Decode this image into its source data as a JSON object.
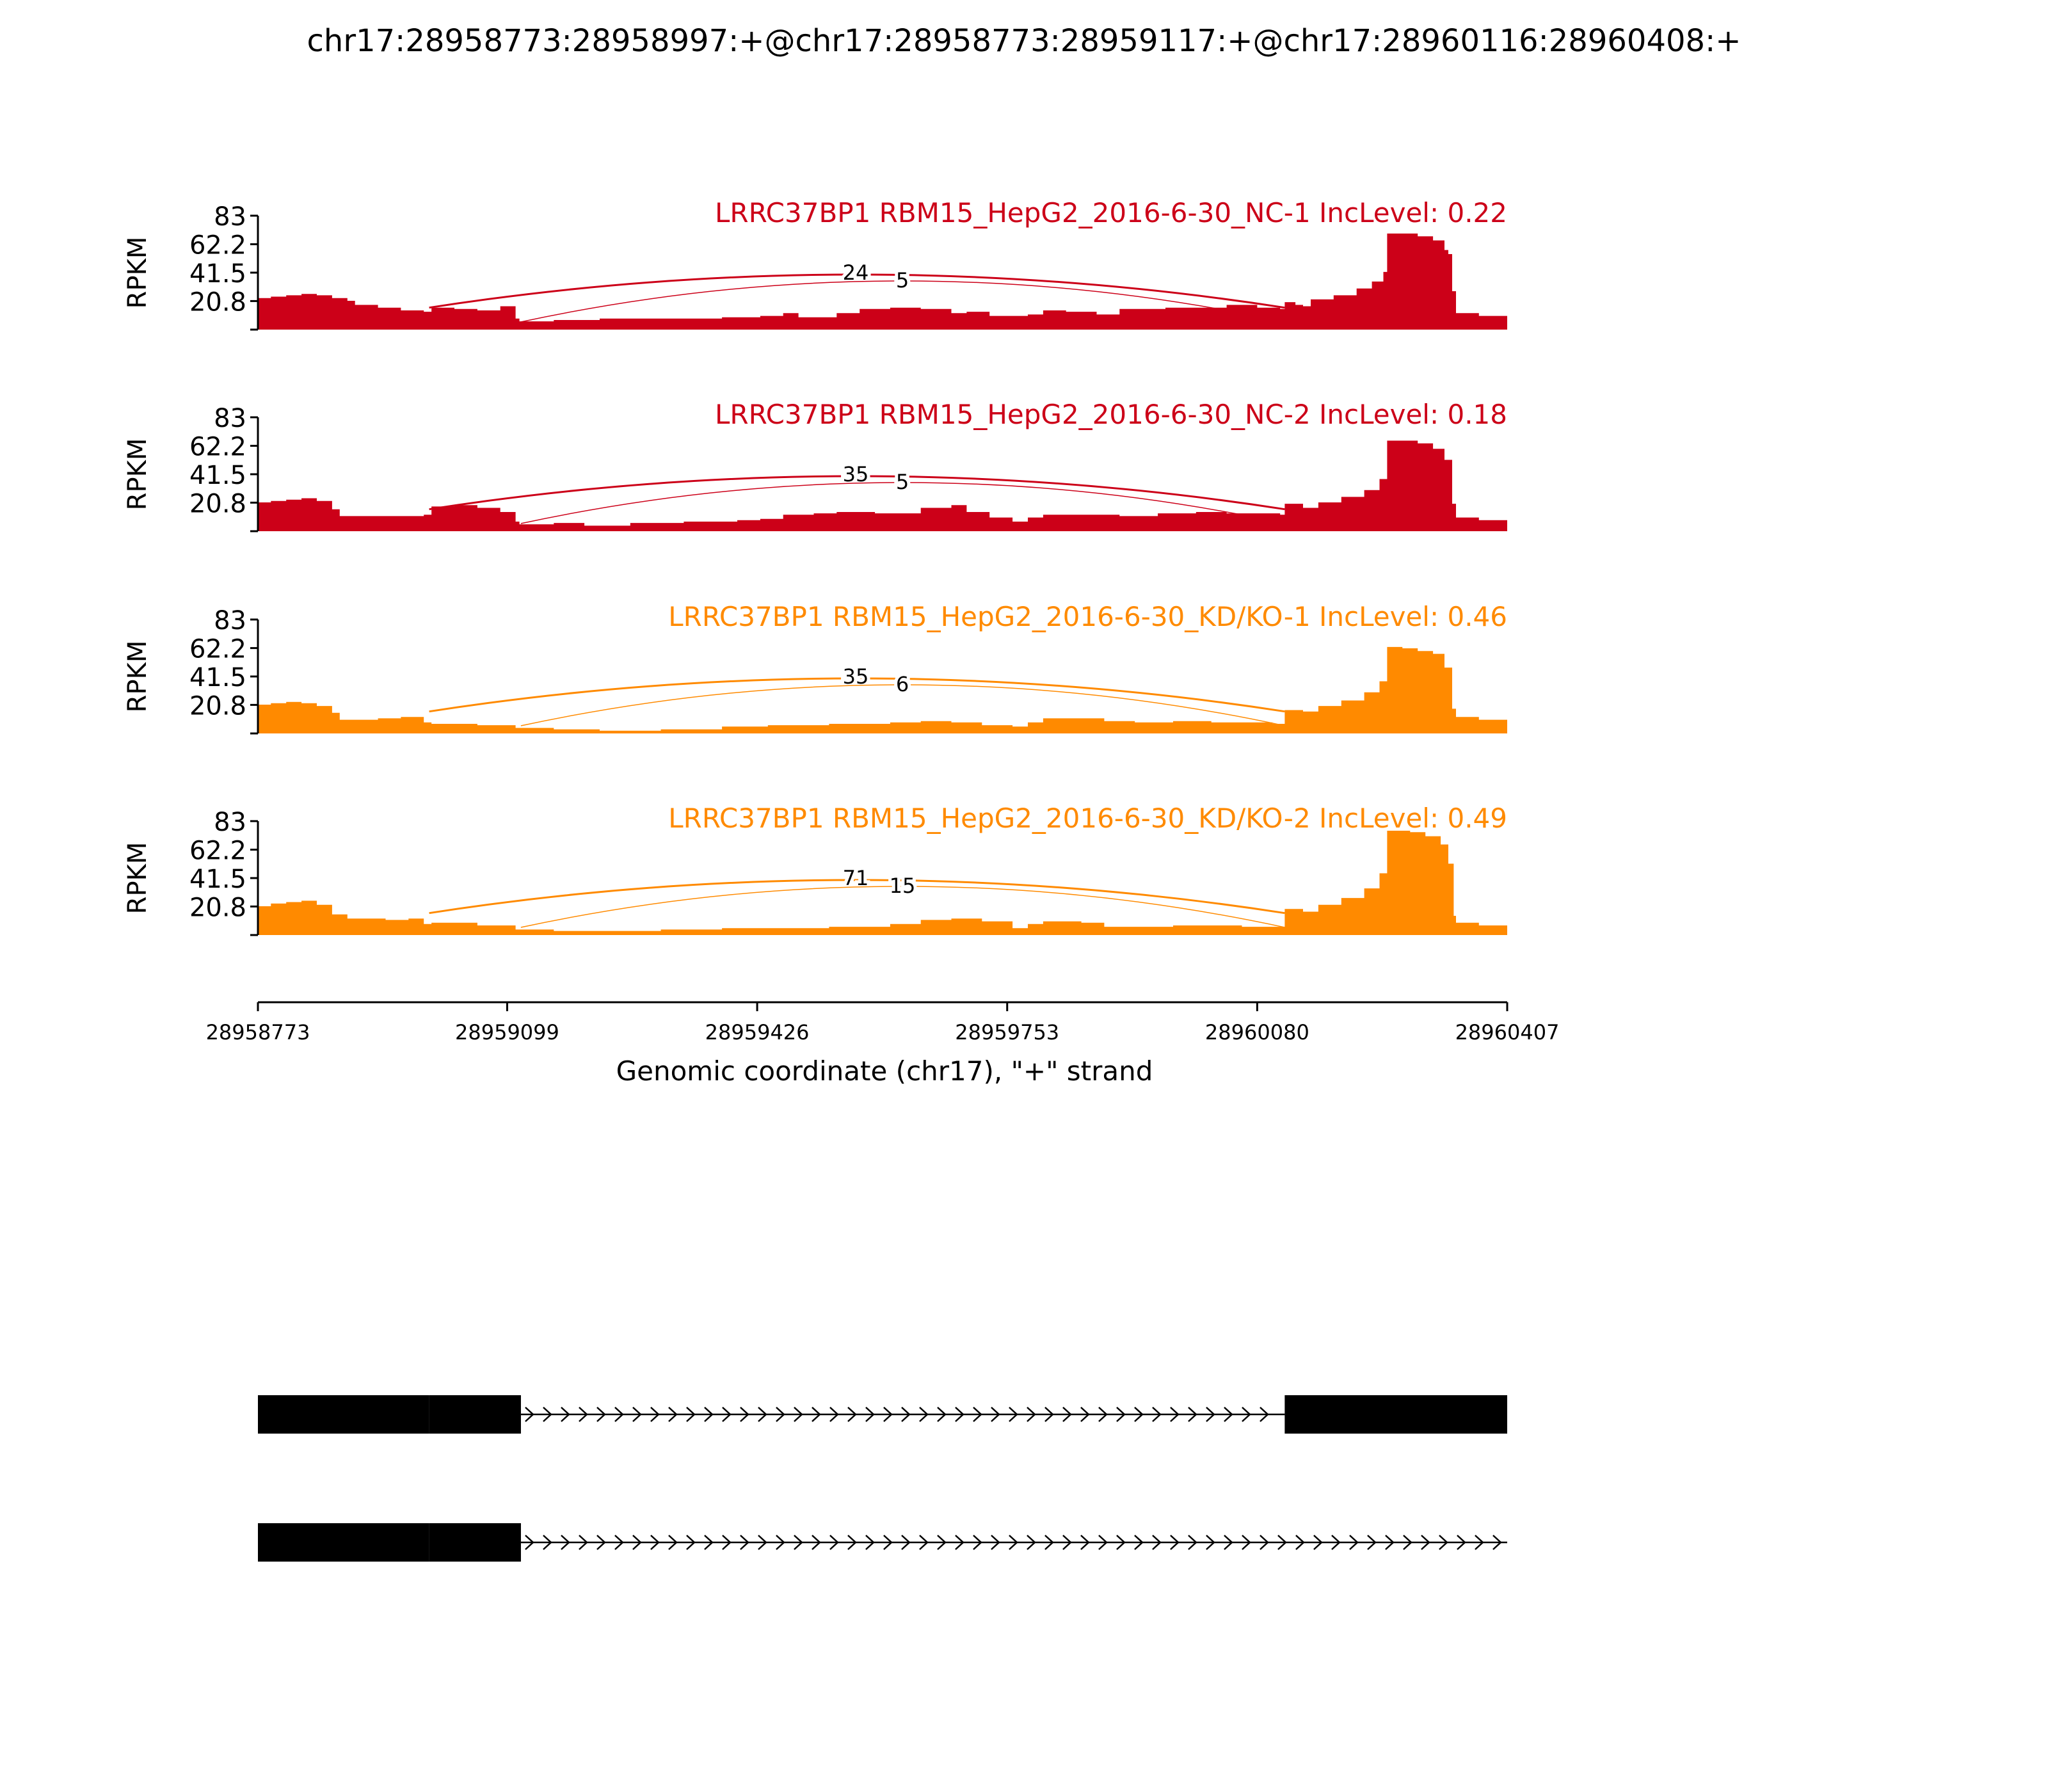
{
  "title": "chr17:28958773:28958997:+@chr17:28958773:28959117:+@chr17:28960116:28960408:+",
  "chart_data": {
    "type": "area",
    "ylabel": "RPKM",
    "xlabel": "Genomic coordinate (chr17), \"+\" strand",
    "xlim": [
      28958773,
      28960407
    ],
    "x_ticks": [
      "28958773",
      "28959099",
      "28959426",
      "28959753",
      "28960080",
      "28960407"
    ],
    "ylim": [
      0,
      83
    ],
    "y_ticks": [
      "20.8",
      "41.5",
      "62.2",
      "83"
    ],
    "colors": {
      "NC": "#cc0018",
      "KD": "#ff8a00",
      "gene": "#000000",
      "axis": "#000000"
    },
    "samples": [
      {
        "label": "LRRC37BP1 RBM15_HepG2_2016-6-30_NC-1 IncLevel: 0.22",
        "group": "NC",
        "junctions": [
          {
            "start": 28958997,
            "end": 28960116,
            "count": "24"
          },
          {
            "start": 28959117,
            "end": 28960116,
            "count": "5"
          }
        ],
        "coverage": [
          [
            28958773,
            23
          ],
          [
            28958790,
            24
          ],
          [
            28958810,
            25
          ],
          [
            28958830,
            26
          ],
          [
            28958850,
            25
          ],
          [
            28958870,
            23
          ],
          [
            28958890,
            21
          ],
          [
            28958900,
            18
          ],
          [
            28958930,
            16
          ],
          [
            28958960,
            14
          ],
          [
            28958990,
            13
          ],
          [
            28959000,
            16
          ],
          [
            28959030,
            15
          ],
          [
            28959060,
            14
          ],
          [
            28959090,
            17
          ],
          [
            28959110,
            8
          ],
          [
            28959115,
            6
          ],
          [
            28959160,
            7
          ],
          [
            28959220,
            8
          ],
          [
            28959300,
            8
          ],
          [
            28959380,
            9
          ],
          [
            28959430,
            10
          ],
          [
            28959460,
            12
          ],
          [
            28959480,
            9
          ],
          [
            28959530,
            12
          ],
          [
            28959560,
            15
          ],
          [
            28959600,
            16
          ],
          [
            28959640,
            15
          ],
          [
            28959680,
            12
          ],
          [
            28959700,
            13
          ],
          [
            28959730,
            10
          ],
          [
            28959780,
            11
          ],
          [
            28959800,
            14
          ],
          [
            28959830,
            13
          ],
          [
            28959870,
            11
          ],
          [
            28959900,
            15
          ],
          [
            28959960,
            16
          ],
          [
            28960000,
            16
          ],
          [
            28960040,
            18
          ],
          [
            28960060,
            18
          ],
          [
            28960080,
            16
          ],
          [
            28960110,
            15
          ],
          [
            28960116,
            20
          ],
          [
            28960130,
            18
          ],
          [
            28960140,
            17
          ],
          [
            28960150,
            22
          ],
          [
            28960180,
            25
          ],
          [
            28960210,
            30
          ],
          [
            28960230,
            35
          ],
          [
            28960245,
            42
          ],
          [
            28960250,
            70
          ],
          [
            28960260,
            70
          ],
          [
            28960290,
            68
          ],
          [
            28960310,
            65
          ],
          [
            28960325,
            58
          ],
          [
            28960330,
            55
          ],
          [
            28960335,
            28
          ],
          [
            28960340,
            12
          ],
          [
            28960370,
            10
          ],
          [
            28960407,
            8
          ]
        ]
      },
      {
        "label": "LRRC37BP1 RBM15_HepG2_2016-6-30_NC-2 IncLevel: 0.18",
        "group": "NC",
        "junctions": [
          {
            "start": 28958997,
            "end": 28960116,
            "count": "35"
          },
          {
            "start": 28959117,
            "end": 28960116,
            "count": "5"
          }
        ],
        "coverage": [
          [
            28958773,
            21
          ],
          [
            28958790,
            22
          ],
          [
            28958810,
            23
          ],
          [
            28958830,
            24
          ],
          [
            28958850,
            22
          ],
          [
            28958870,
            16
          ],
          [
            28958880,
            11
          ],
          [
            28958930,
            11
          ],
          [
            28958990,
            12
          ],
          [
            28959000,
            18
          ],
          [
            28959030,
            19
          ],
          [
            28959060,
            17
          ],
          [
            28959090,
            14
          ],
          [
            28959110,
            7
          ],
          [
            28959115,
            5
          ],
          [
            28959160,
            6
          ],
          [
            28959200,
            4
          ],
          [
            28959260,
            6
          ],
          [
            28959330,
            7
          ],
          [
            28959400,
            8
          ],
          [
            28959430,
            9
          ],
          [
            28959460,
            12
          ],
          [
            28959500,
            13
          ],
          [
            28959530,
            14
          ],
          [
            28959580,
            13
          ],
          [
            28959640,
            17
          ],
          [
            28959680,
            19
          ],
          [
            28959700,
            14
          ],
          [
            28959730,
            10
          ],
          [
            28959760,
            7
          ],
          [
            28959780,
            10
          ],
          [
            28959800,
            12
          ],
          [
            28959850,
            12
          ],
          [
            28959900,
            11
          ],
          [
            28959950,
            13
          ],
          [
            28960000,
            14
          ],
          [
            28960040,
            13
          ],
          [
            28960080,
            13
          ],
          [
            28960110,
            12
          ],
          [
            28960116,
            20
          ],
          [
            28960140,
            17
          ],
          [
            28960160,
            21
          ],
          [
            28960190,
            25
          ],
          [
            28960220,
            30
          ],
          [
            28960240,
            38
          ],
          [
            28960250,
            66
          ],
          [
            28960270,
            66
          ],
          [
            28960290,
            64
          ],
          [
            28960310,
            60
          ],
          [
            28960325,
            52
          ],
          [
            28960335,
            20
          ],
          [
            28960340,
            10
          ],
          [
            28960370,
            8
          ],
          [
            28960407,
            7
          ]
        ]
      },
      {
        "label": "LRRC37BP1 RBM15_HepG2_2016-6-30_KD/KO-1 IncLevel: 0.46",
        "group": "KD",
        "junctions": [
          {
            "start": 28958997,
            "end": 28960116,
            "count": "35"
          },
          {
            "start": 28959117,
            "end": 28960116,
            "count": "6"
          }
        ],
        "coverage": [
          [
            28958773,
            21
          ],
          [
            28958790,
            22
          ],
          [
            28958810,
            23
          ],
          [
            28958830,
            22
          ],
          [
            28958850,
            20
          ],
          [
            28958870,
            15
          ],
          [
            28958880,
            10
          ],
          [
            28958930,
            11
          ],
          [
            28958960,
            12
          ],
          [
            28958990,
            8
          ],
          [
            28959000,
            7
          ],
          [
            28959060,
            6
          ],
          [
            28959110,
            4
          ],
          [
            28959160,
            3
          ],
          [
            28959220,
            2
          ],
          [
            28959300,
            3
          ],
          [
            28959380,
            5
          ],
          [
            28959440,
            6
          ],
          [
            28959520,
            7
          ],
          [
            28959600,
            8
          ],
          [
            28959640,
            9
          ],
          [
            28959680,
            8
          ],
          [
            28959720,
            6
          ],
          [
            28959760,
            5
          ],
          [
            28959780,
            8
          ],
          [
            28959800,
            11
          ],
          [
            28959850,
            11
          ],
          [
            28959880,
            9
          ],
          [
            28959920,
            8
          ],
          [
            28959970,
            9
          ],
          [
            28960020,
            8
          ],
          [
            28960060,
            8
          ],
          [
            28960100,
            7
          ],
          [
            28960116,
            17
          ],
          [
            28960140,
            16
          ],
          [
            28960160,
            20
          ],
          [
            28960190,
            24
          ],
          [
            28960220,
            30
          ],
          [
            28960240,
            38
          ],
          [
            28960250,
            63
          ],
          [
            28960270,
            62
          ],
          [
            28960290,
            60
          ],
          [
            28960310,
            58
          ],
          [
            28960325,
            48
          ],
          [
            28960335,
            18
          ],
          [
            28960340,
            12
          ],
          [
            28960370,
            10
          ],
          [
            28960407,
            8
          ]
        ]
      },
      {
        "label": "LRRC37BP1 RBM15_HepG2_2016-6-30_KD/KO-2 IncLevel: 0.49",
        "group": "KD",
        "junctions": [
          {
            "start": 28958997,
            "end": 28960116,
            "count": "71"
          },
          {
            "start": 28959117,
            "end": 28960116,
            "count": "15"
          }
        ],
        "coverage": [
          [
            28958773,
            21
          ],
          [
            28958790,
            23
          ],
          [
            28958810,
            24
          ],
          [
            28958830,
            25
          ],
          [
            28958850,
            22
          ],
          [
            28958870,
            15
          ],
          [
            28958890,
            12
          ],
          [
            28958940,
            11
          ],
          [
            28958970,
            12
          ],
          [
            28958990,
            8
          ],
          [
            28959000,
            9
          ],
          [
            28959060,
            7
          ],
          [
            28959110,
            4
          ],
          [
            28959160,
            3
          ],
          [
            28959220,
            3
          ],
          [
            28959300,
            4
          ],
          [
            28959380,
            5
          ],
          [
            28959440,
            5
          ],
          [
            28959520,
            6
          ],
          [
            28959600,
            8
          ],
          [
            28959640,
            11
          ],
          [
            28959680,
            12
          ],
          [
            28959720,
            10
          ],
          [
            28959760,
            5
          ],
          [
            28959780,
            8
          ],
          [
            28959800,
            10
          ],
          [
            28959850,
            9
          ],
          [
            28959880,
            6
          ],
          [
            28959920,
            6
          ],
          [
            28959970,
            7
          ],
          [
            28960020,
            7
          ],
          [
            28960060,
            6
          ],
          [
            28960100,
            6
          ],
          [
            28960116,
            19
          ],
          [
            28960140,
            17
          ],
          [
            28960160,
            22
          ],
          [
            28960190,
            27
          ],
          [
            28960220,
            34
          ],
          [
            28960240,
            45
          ],
          [
            28960250,
            76
          ],
          [
            28960280,
            75
          ],
          [
            28960300,
            72
          ],
          [
            28960320,
            66
          ],
          [
            28960330,
            52
          ],
          [
            28960337,
            14
          ],
          [
            28960340,
            9
          ],
          [
            28960370,
            7
          ],
          [
            28960407,
            6
          ]
        ]
      }
    ],
    "gene_models": [
      {
        "exons": [
          [
            28958773,
            28958997
          ],
          [
            28958997,
            28959117
          ],
          [
            28960116,
            28960407
          ]
        ],
        "intron": [
          28959117,
          28960116
        ]
      },
      {
        "exons": [
          [
            28958773,
            28958997
          ],
          [
            28958997,
            28959117
          ]
        ],
        "intron": [
          28959117,
          28960407
        ]
      }
    ]
  }
}
